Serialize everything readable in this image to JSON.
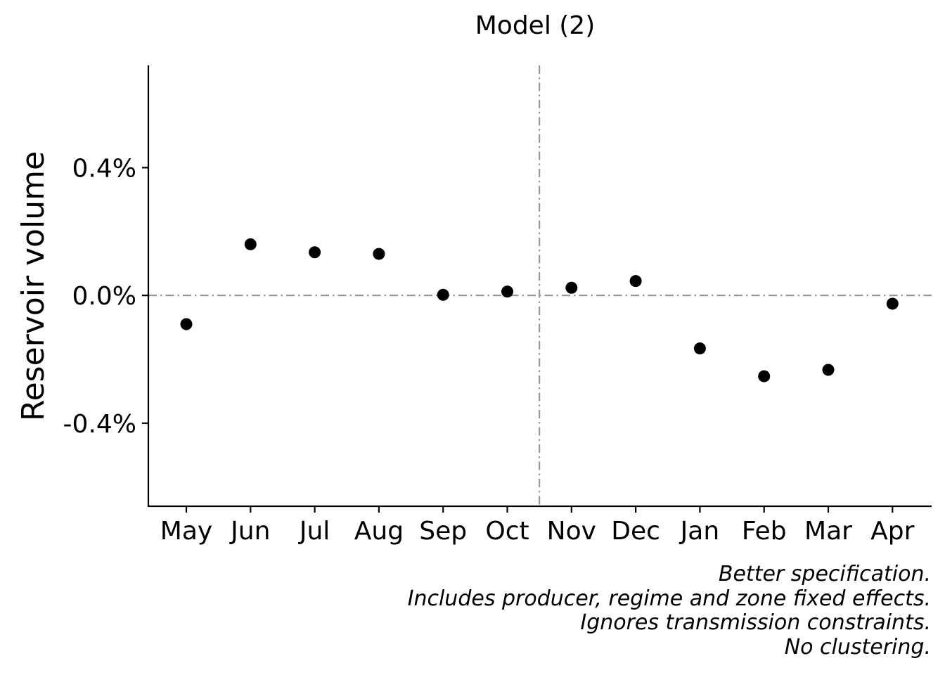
{
  "chart_data": {
    "type": "scatter",
    "title": "Model (2)",
    "xlabel": "",
    "ylabel": "Reservoir volume",
    "categories": [
      "May",
      "Jun",
      "Jul",
      "Aug",
      "Sep",
      "Oct",
      "Nov",
      "Dec",
      "Jan",
      "Feb",
      "Mar",
      "Apr"
    ],
    "series": [
      {
        "values": [
          -0.0009,
          0.0016,
          0.00135,
          0.0013,
          2e-05,
          0.00012,
          0.00024,
          0.00045,
          -0.00166,
          -0.00253,
          -0.00233,
          -0.00026
        ]
      }
    ],
    "ylim": [
      -0.0066,
      0.0072
    ],
    "yticks": [
      0.004,
      0.0,
      -0.004
    ],
    "ytick_labels": [
      "0.4%",
      "0.0%",
      "-0.4%"
    ],
    "hline": 0.0,
    "vline_between": [
      "Oct",
      "Nov"
    ],
    "grid": false,
    "legend": "none",
    "point_color": "#000000",
    "reference_line_color": "#999999"
  },
  "caption": [
    "Better specification.",
    "Includes producer, regime and zone fixed effects.",
    "Ignores transmission constraints.",
    "No clustering."
  ]
}
